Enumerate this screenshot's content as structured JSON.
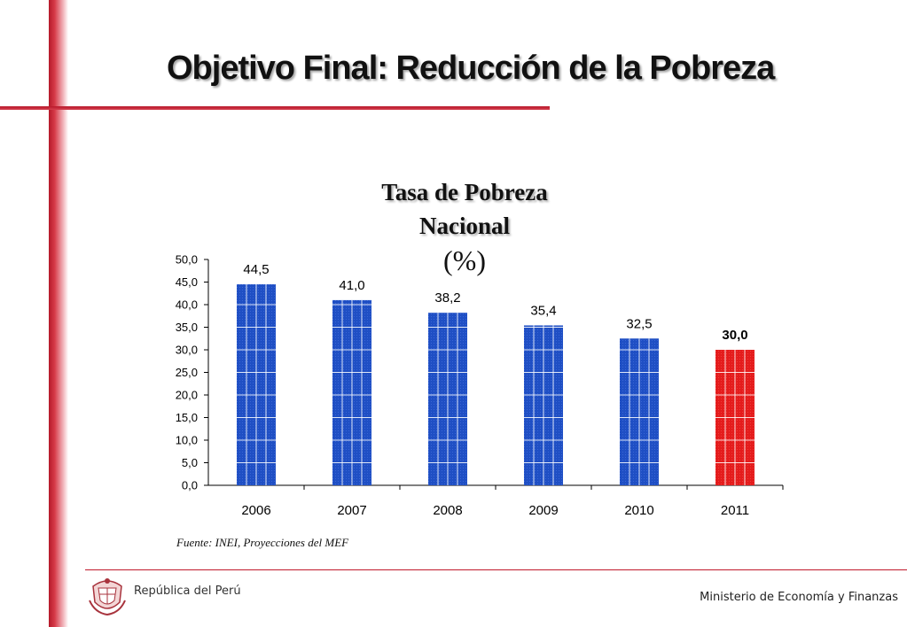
{
  "slide": {
    "title": "Objetivo Final: Reducción de la Pobreza",
    "source": "Fuente: INEI, Proyecciones del MEF"
  },
  "footer": {
    "left_label": "República del Perú",
    "right_label": "Ministerio de Economía y Finanzas"
  },
  "colors": {
    "accent_red": "#c0192c",
    "bar_blue": "#1f4fc4",
    "bar_highlight": "#e41c1c"
  },
  "chart_data": {
    "type": "bar",
    "title_line1": "Tasa de Pobreza",
    "title_line2": "Nacional",
    "subtitle": "(%)",
    "categories": [
      "2006",
      "2007",
      "2008",
      "2009",
      "2010",
      "2011"
    ],
    "values": [
      44.5,
      41.0,
      38.2,
      35.4,
      32.5,
      30.0
    ],
    "value_labels": [
      "44,5",
      "41,0",
      "38,2",
      "35,4",
      "32,5",
      "30,0"
    ],
    "highlight_index": 5,
    "yticks": [
      "0,0",
      "5,0",
      "10,0",
      "15,0",
      "20,0",
      "25,0",
      "30,0",
      "35,0",
      "40,0",
      "45,0",
      "50,0"
    ],
    "ylim": [
      0,
      50
    ],
    "grid": false,
    "legend": "none"
  }
}
